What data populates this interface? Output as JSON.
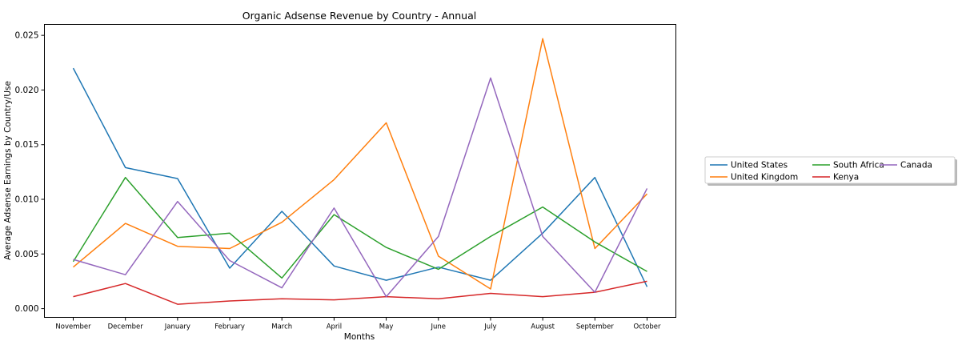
{
  "chart_data": {
    "type": "line",
    "title": "Organic Adsense Revenue by Country - Annual",
    "xlabel": "Months",
    "ylabel": "Average Adsense Earnings by Country/Use",
    "categories": [
      "November",
      "December",
      "January",
      "February",
      "March",
      "April",
      "May",
      "June",
      "July",
      "August",
      "September",
      "October"
    ],
    "ylim": [
      -0.0008,
      0.026
    ],
    "yticks": [
      0.0,
      0.005,
      0.01,
      0.015,
      0.02,
      0.025
    ],
    "ytick_labels": [
      "0.000",
      "0.005",
      "0.010",
      "0.015",
      "0.020",
      "0.025"
    ],
    "grid": false,
    "legend_placement": "outside-right",
    "series": [
      {
        "name": "United States",
        "color": "#1f77b4",
        "values": [
          0.022,
          0.0129,
          0.0119,
          0.0037,
          0.0089,
          0.0039,
          0.0026,
          0.0038,
          0.0026,
          0.0069,
          0.012,
          0.002
        ]
      },
      {
        "name": "United Kingdom",
        "color": "#ff7f0e",
        "values": [
          0.0038,
          0.0078,
          0.0057,
          0.0055,
          0.0079,
          0.0118,
          0.017,
          0.0048,
          0.0018,
          0.0247,
          0.0055,
          0.0105
        ]
      },
      {
        "name": "South Africa",
        "color": "#2ca02c",
        "values": [
          0.0043,
          0.012,
          0.0065,
          0.0069,
          0.0028,
          0.0086,
          0.0056,
          0.0036,
          0.0066,
          0.0093,
          0.0061,
          0.0034
        ]
      },
      {
        "name": "Kenya",
        "color": "#d62728",
        "values": [
          0.0011,
          0.0023,
          0.0004,
          0.0007,
          0.0009,
          0.0008,
          0.0011,
          0.0009,
          0.0014,
          0.0011,
          0.0015,
          0.0025
        ]
      },
      {
        "name": "Canada",
        "color": "#9467bd",
        "values": [
          0.0045,
          0.0031,
          0.0098,
          0.0044,
          0.0019,
          0.0092,
          0.0011,
          0.0066,
          0.0211,
          0.0066,
          0.0015,
          0.011
        ]
      }
    ]
  }
}
